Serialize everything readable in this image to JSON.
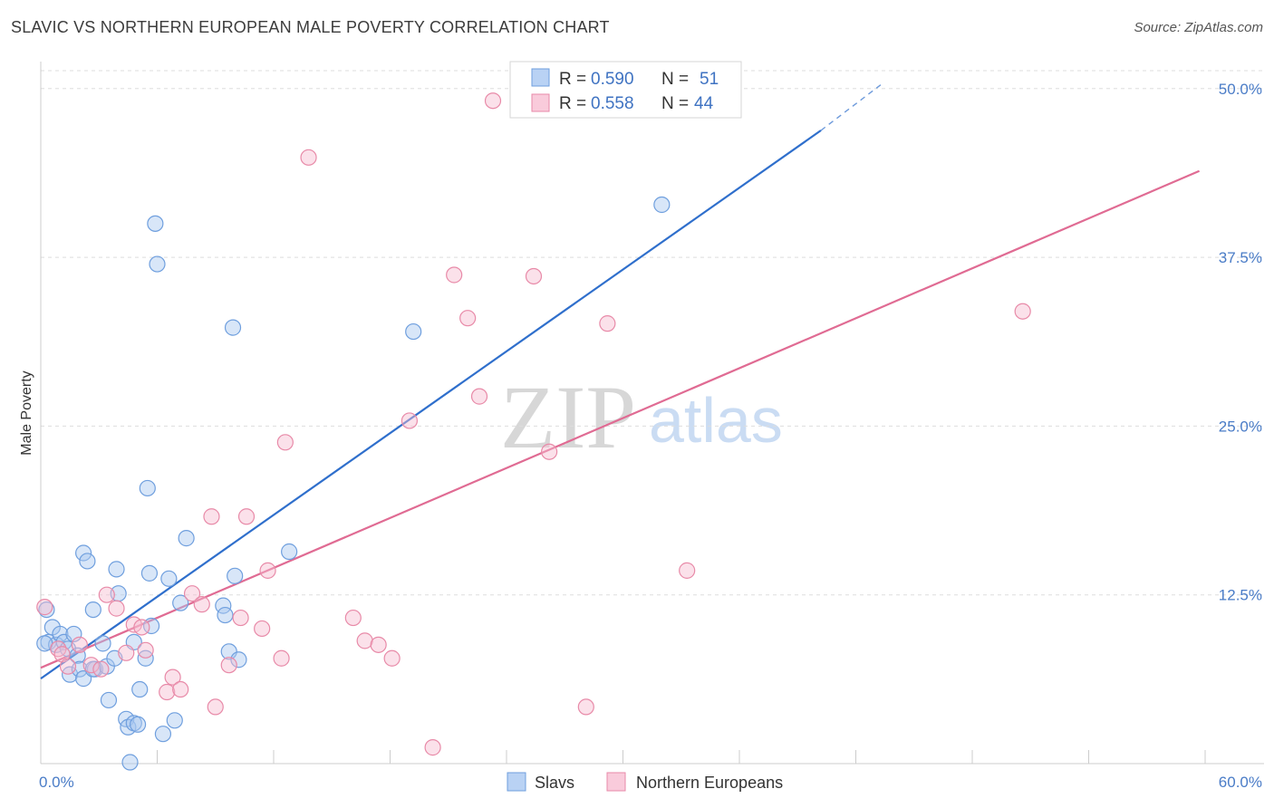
{
  "header": {
    "title": "SLAVIC VS NORTHERN EUROPEAN MALE POVERTY CORRELATION CHART",
    "source": "Source: ZipAtlas.com"
  },
  "watermark": {
    "zip": "ZIP",
    "atlas": "atlas"
  },
  "legend": {
    "rows": [
      {
        "r_label": "R = ",
        "r_value": "0.590",
        "n_label": "N = ",
        "n_value": "51",
        "color": "#a9c8f0",
        "stroke": "#6f9fde"
      },
      {
        "r_label": "R = ",
        "r_value": "0.558",
        "n_label": "N = ",
        "n_value": "44",
        "color": "#f7bcd0",
        "stroke": "#e88aa8"
      }
    ]
  },
  "chart_data": {
    "type": "scatter",
    "title": "SLAVIC VS NORTHERN EUROPEAN MALE POVERTY CORRELATION CHART",
    "xlabel": "",
    "ylabel": "Male Poverty",
    "xlim": [
      0,
      60
    ],
    "ylim": [
      0,
      52
    ],
    "x_tick_labels": [
      "0.0%",
      "60.0%"
    ],
    "y_ticks": [
      12.5,
      25.0,
      37.5,
      50.0
    ],
    "y_tick_labels": [
      "12.5%",
      "25.0%",
      "37.5%",
      "50.0%"
    ],
    "grid": true,
    "legend_position": "top-center",
    "series": [
      {
        "name": "Slavs",
        "color": "#a9c8f0",
        "stroke": "#6f9fde",
        "line_color": "#2f6fcc",
        "trend": {
          "x0": 0,
          "y0": 6.3,
          "x1": 40.2,
          "y1": 46.9,
          "dash_to_x": 43.3,
          "dash_to_y": 50.3
        },
        "points": [
          [
            0.3,
            11.4
          ],
          [
            0.4,
            9.0
          ],
          [
            0.6,
            10.1
          ],
          [
            0.8,
            8.8
          ],
          [
            1.0,
            9.6
          ],
          [
            1.2,
            9.0
          ],
          [
            1.4,
            8.5
          ],
          [
            1.5,
            6.6
          ],
          [
            1.7,
            9.6
          ],
          [
            1.9,
            8.0
          ],
          [
            2.0,
            7.0
          ],
          [
            2.2,
            6.3
          ],
          [
            2.2,
            15.6
          ],
          [
            2.4,
            15.0
          ],
          [
            2.7,
            11.4
          ],
          [
            2.8,
            7.0
          ],
          [
            3.2,
            8.9
          ],
          [
            3.4,
            7.2
          ],
          [
            3.5,
            4.7
          ],
          [
            3.8,
            7.8
          ],
          [
            3.9,
            14.4
          ],
          [
            4.0,
            12.6
          ],
          [
            4.4,
            3.3
          ],
          [
            4.5,
            2.7
          ],
          [
            4.8,
            9.0
          ],
          [
            4.8,
            3.0
          ],
          [
            5.0,
            2.9
          ],
          [
            5.1,
            5.5
          ],
          [
            5.4,
            7.8
          ],
          [
            5.5,
            20.4
          ],
          [
            5.6,
            14.1
          ],
          [
            5.7,
            10.2
          ],
          [
            5.9,
            40.0
          ],
          [
            6.0,
            37.0
          ],
          [
            6.3,
            2.2
          ],
          [
            6.6,
            13.7
          ],
          [
            6.9,
            3.2
          ],
          [
            7.2,
            11.9
          ],
          [
            7.5,
            16.7
          ],
          [
            9.4,
            11.7
          ],
          [
            9.5,
            11.0
          ],
          [
            9.7,
            8.3
          ],
          [
            9.9,
            32.3
          ],
          [
            10.0,
            13.9
          ],
          [
            10.2,
            7.7
          ],
          [
            12.8,
            15.7
          ],
          [
            19.2,
            32.0
          ],
          [
            32.0,
            41.4
          ],
          [
            0.2,
            8.9
          ],
          [
            2.7,
            7.0
          ],
          [
            4.6,
            0.1
          ]
        ]
      },
      {
        "name": "Northern Europeans",
        "color": "#f7bcd0",
        "stroke": "#e88aa8",
        "line_color": "#e06b93",
        "trend": {
          "x0": 0,
          "y0": 7.1,
          "x1": 59.7,
          "y1": 43.9
        },
        "points": [
          [
            0.2,
            11.6
          ],
          [
            0.9,
            8.5
          ],
          [
            1.1,
            8.1
          ],
          [
            1.4,
            7.2
          ],
          [
            2.0,
            8.8
          ],
          [
            2.6,
            7.3
          ],
          [
            3.1,
            7.0
          ],
          [
            3.4,
            12.5
          ],
          [
            3.9,
            11.5
          ],
          [
            4.4,
            8.2
          ],
          [
            4.8,
            10.3
          ],
          [
            5.2,
            10.1
          ],
          [
            5.4,
            8.4
          ],
          [
            6.5,
            5.3
          ],
          [
            6.8,
            6.4
          ],
          [
            7.2,
            5.5
          ],
          [
            7.8,
            12.6
          ],
          [
            8.3,
            11.8
          ],
          [
            8.8,
            18.3
          ],
          [
            9.0,
            4.2
          ],
          [
            9.7,
            7.3
          ],
          [
            10.3,
            10.8
          ],
          [
            10.6,
            18.3
          ],
          [
            11.4,
            10.0
          ],
          [
            11.7,
            14.3
          ],
          [
            12.4,
            7.8
          ],
          [
            12.6,
            23.8
          ],
          [
            13.8,
            44.9
          ],
          [
            16.1,
            10.8
          ],
          [
            16.7,
            9.1
          ],
          [
            17.4,
            8.8
          ],
          [
            18.1,
            7.8
          ],
          [
            19.0,
            25.4
          ],
          [
            20.2,
            1.2
          ],
          [
            21.3,
            36.2
          ],
          [
            22.0,
            33.0
          ],
          [
            22.6,
            27.2
          ],
          [
            23.3,
            49.1
          ],
          [
            25.4,
            36.1
          ],
          [
            26.2,
            23.1
          ],
          [
            28.1,
            4.2
          ],
          [
            29.2,
            32.6
          ],
          [
            33.3,
            14.3
          ],
          [
            50.6,
            33.5
          ]
        ]
      }
    ]
  }
}
